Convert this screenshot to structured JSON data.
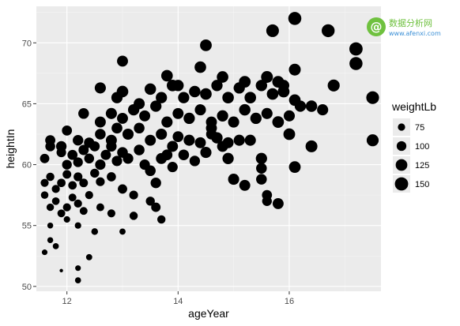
{
  "chart_data": {
    "type": "scatter",
    "xlabel": "ageYear",
    "ylabel": "heightIn",
    "xlim": [
      11.45,
      17.65
    ],
    "ylim": [
      49.6,
      73.0
    ],
    "x_ticks": [
      12,
      14,
      16
    ],
    "y_ticks": [
      50,
      55,
      60,
      65,
      70
    ],
    "grid": true,
    "size_legend": {
      "title": "weightLb",
      "placement": "right",
      "values": [
        75,
        100,
        125,
        150
      ]
    },
    "size_range_data": [
      50,
      171
    ],
    "point_color": "#000000",
    "points": [
      [
        11.9,
        51.3,
        50
      ],
      [
        12.2,
        50.5,
        65
      ],
      [
        12.2,
        51.5,
        62
      ],
      [
        12.4,
        52.4,
        66
      ],
      [
        11.6,
        52.8,
        62
      ],
      [
        11.7,
        53.8,
        64
      ],
      [
        11.8,
        53.3,
        65
      ],
      [
        11.7,
        55.0,
        64
      ],
      [
        12.0,
        55.5,
        68
      ],
      [
        12.2,
        55.0,
        68
      ],
      [
        12.5,
        54.5,
        70
      ],
      [
        13.0,
        54.5,
        66
      ],
      [
        11.6,
        57.5,
        77
      ],
      [
        11.7,
        56.5,
        76
      ],
      [
        11.8,
        57.0,
        78
      ],
      [
        11.9,
        56.0,
        80
      ],
      [
        12.0,
        56.5,
        82
      ],
      [
        12.1,
        57.3,
        80
      ],
      [
        12.2,
        56.8,
        82
      ],
      [
        12.3,
        56.2,
        80
      ],
      [
        12.4,
        57.5,
        82
      ],
      [
        12.6,
        56.5,
        80
      ],
      [
        12.8,
        56.0,
        82
      ],
      [
        13.2,
        55.8,
        84
      ],
      [
        11.6,
        58.5,
        82
      ],
      [
        11.7,
        59.0,
        84
      ],
      [
        11.8,
        58.0,
        82
      ],
      [
        11.9,
        58.5,
        86
      ],
      [
        12.0,
        59.2,
        88
      ],
      [
        12.1,
        58.3,
        86
      ],
      [
        12.2,
        59.0,
        90
      ],
      [
        12.3,
        58.5,
        88
      ],
      [
        12.5,
        59.3,
        92
      ],
      [
        12.6,
        58.6,
        90
      ],
      [
        12.8,
        59.0,
        94
      ],
      [
        13.0,
        58.0,
        96
      ],
      [
        13.2,
        57.5,
        90
      ],
      [
        13.5,
        57.0,
        92
      ],
      [
        13.6,
        56.5,
        96
      ],
      [
        13.7,
        55.5,
        84
      ],
      [
        11.6,
        60.5,
        96
      ],
      [
        11.7,
        61.5,
        102
      ],
      [
        11.9,
        61.0,
        98
      ],
      [
        12.0,
        60.0,
        100
      ],
      [
        12.1,
        60.8,
        104
      ],
      [
        12.2,
        60.2,
        100
      ],
      [
        12.3,
        61.2,
        106
      ],
      [
        12.4,
        60.5,
        102
      ],
      [
        12.5,
        61.5,
        104
      ],
      [
        12.6,
        60.0,
        108
      ],
      [
        12.7,
        60.8,
        106
      ],
      [
        12.8,
        61.5,
        110
      ],
      [
        12.9,
        60.3,
        108
      ],
      [
        13.0,
        61.0,
        112
      ],
      [
        13.1,
        60.5,
        110
      ],
      [
        13.3,
        61.2,
        112
      ],
      [
        13.4,
        60.0,
        108
      ],
      [
        13.5,
        59.5,
        112
      ],
      [
        13.6,
        58.5,
        110
      ],
      [
        13.7,
        60.5,
        116
      ],
      [
        11.7,
        62.0,
        105
      ],
      [
        11.9,
        61.5,
        110
      ],
      [
        12.0,
        62.8,
        104
      ],
      [
        12.2,
        62.0,
        110
      ],
      [
        12.4,
        61.8,
        108
      ],
      [
        12.6,
        62.5,
        112
      ],
      [
        12.8,
        62.0,
        116
      ],
      [
        12.9,
        63.0,
        114
      ],
      [
        13.1,
        62.5,
        118
      ],
      [
        13.3,
        63.0,
        112
      ],
      [
        13.5,
        62.0,
        116
      ],
      [
        13.7,
        62.5,
        118
      ],
      [
        13.9,
        61.5,
        116
      ],
      [
        14.0,
        62.3,
        114
      ],
      [
        14.2,
        62.0,
        118
      ],
      [
        14.4,
        61.8,
        116
      ],
      [
        14.5,
        61.0,
        118
      ],
      [
        14.6,
        62.5,
        112
      ],
      [
        14.8,
        61.5,
        116
      ],
      [
        14.9,
        60.5,
        120
      ],
      [
        12.3,
        64.2,
        112
      ],
      [
        12.6,
        63.5,
        116
      ],
      [
        12.8,
        64.2,
        118
      ],
      [
        13.0,
        63.8,
        116
      ],
      [
        13.2,
        64.5,
        120
      ],
      [
        13.4,
        64.0,
        116
      ],
      [
        13.6,
        64.8,
        120
      ],
      [
        13.8,
        63.5,
        118
      ],
      [
        14.0,
        64.2,
        116
      ],
      [
        14.2,
        63.8,
        120
      ],
      [
        14.4,
        64.5,
        118
      ],
      [
        14.6,
        63.5,
        116
      ],
      [
        14.8,
        64.0,
        120
      ],
      [
        15.0,
        63.5,
        118
      ],
      [
        15.2,
        64.5,
        122
      ],
      [
        15.4,
        63.8,
        120
      ],
      [
        15.6,
        64.2,
        118
      ],
      [
        15.8,
        63.5,
        122
      ],
      [
        16.0,
        64.0,
        118
      ],
      [
        16.2,
        64.8,
        120
      ],
      [
        12.6,
        66.3,
        118
      ],
      [
        12.9,
        65.5,
        120
      ],
      [
        13.0,
        66.0,
        124
      ],
      [
        13.3,
        65.0,
        118
      ],
      [
        13.5,
        66.2,
        122
      ],
      [
        13.7,
        65.5,
        120
      ],
      [
        13.9,
        66.5,
        124
      ],
      [
        14.1,
        65.5,
        120
      ],
      [
        14.3,
        66.0,
        122
      ],
      [
        14.5,
        65.8,
        124
      ],
      [
        14.7,
        66.5,
        120
      ],
      [
        14.9,
        65.5,
        124
      ],
      [
        15.1,
        66.3,
        120
      ],
      [
        15.3,
        65.5,
        124
      ],
      [
        15.5,
        66.5,
        122
      ],
      [
        15.7,
        65.8,
        124
      ],
      [
        15.9,
        66.5,
        120
      ],
      [
        16.1,
        65.3,
        124
      ],
      [
        16.4,
        64.8,
        122
      ],
      [
        16.6,
        64.5,
        118
      ],
      [
        13.0,
        68.5,
        116
      ],
      [
        13.8,
        67.3,
        124
      ],
      [
        14.0,
        66.5,
        120
      ],
      [
        14.4,
        68.0,
        124
      ],
      [
        14.5,
        69.8,
        126
      ],
      [
        14.8,
        67.2,
        124
      ],
      [
        15.2,
        66.8,
        126
      ],
      [
        15.6,
        67.2,
        128
      ],
      [
        15.8,
        66.8,
        126
      ],
      [
        16.1,
        67.8,
        128
      ],
      [
        15.3,
        62.0,
        118
      ],
      [
        15.5,
        60.5,
        120
      ],
      [
        15.2,
        58.3,
        116
      ],
      [
        15.5,
        58.8,
        112
      ],
      [
        15.6,
        57.5,
        104
      ],
      [
        15.6,
        57.0,
        100
      ],
      [
        15.8,
        56.8,
        116
      ],
      [
        15.5,
        59.7,
        112
      ],
      [
        15.0,
        58.8,
        118
      ],
      [
        16.1,
        59.8,
        126
      ],
      [
        16.4,
        61.5,
        128
      ],
      [
        16.0,
        62.5,
        126
      ],
      [
        15.8,
        63.5,
        124
      ],
      [
        15.9,
        66.0,
        126
      ],
      [
        16.8,
        66.5,
        130
      ],
      [
        15.7,
        71.0,
        140
      ],
      [
        16.1,
        72.0,
        146
      ],
      [
        16.7,
        71.0,
        144
      ],
      [
        17.2,
        69.5,
        150
      ],
      [
        17.2,
        68.3,
        146
      ],
      [
        17.5,
        65.5,
        142
      ],
      [
        17.5,
        62.0,
        130
      ],
      [
        14.7,
        62.2,
        120
      ],
      [
        14.9,
        61.8,
        116
      ],
      [
        15.1,
        62.0,
        118
      ],
      [
        14.1,
        60.8,
        112
      ],
      [
        14.3,
        60.3,
        110
      ],
      [
        13.9,
        59.8,
        108
      ],
      [
        13.8,
        60.8,
        114
      ],
      [
        14.6,
        63.0,
        116
      ]
    ]
  }
}
